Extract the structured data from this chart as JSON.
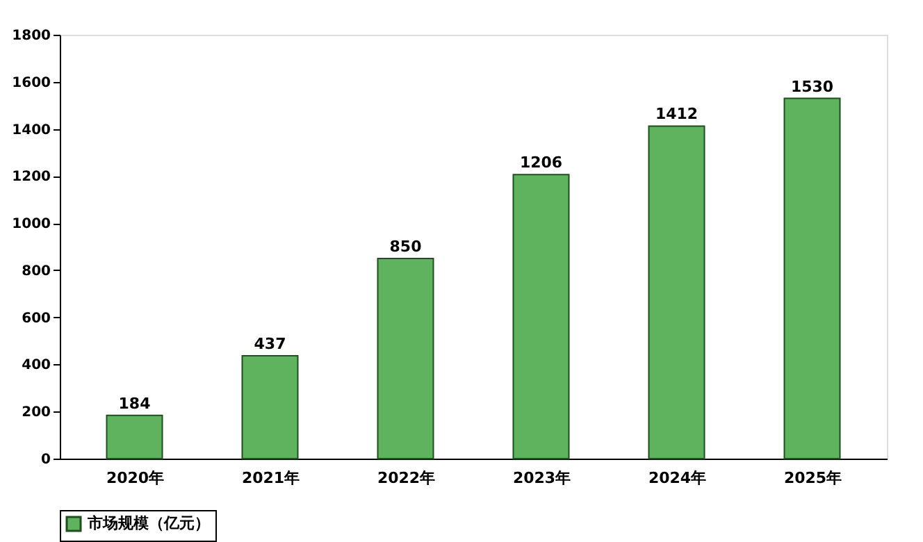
{
  "chart_data": {
    "type": "bar",
    "categories": [
      "2020年",
      "2021年",
      "2022年",
      "2023年",
      "2024年",
      "2025年"
    ],
    "series": [
      {
        "name": "市场规模（亿元）",
        "color": "#5fb35f",
        "values": [
          184,
          437,
          850,
          1206,
          1412,
          1530
        ]
      }
    ],
    "ylim": [
      0,
      1800
    ],
    "yticks": [
      0,
      200,
      400,
      600,
      800,
      1000,
      1200,
      1400,
      1600,
      1800
    ],
    "data_labels": true,
    "legend": "bottom",
    "grid": false
  }
}
